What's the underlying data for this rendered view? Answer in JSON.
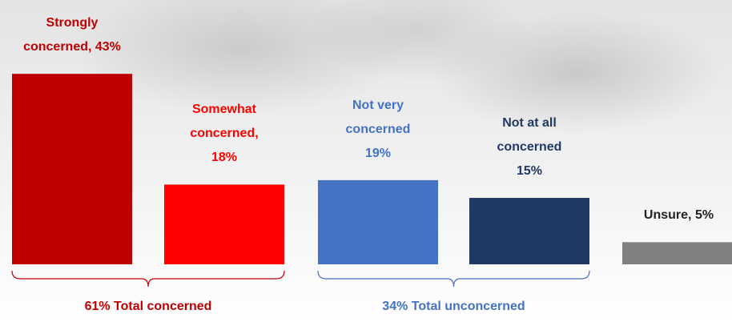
{
  "chart_data": {
    "type": "bar",
    "values": [
      43,
      18,
      19,
      15,
      5
    ],
    "value_labels": [
      "Strongly\nconcerned, 43%",
      "Somewhat\nconcerned,\n18%",
      "Not very\nconcerned\n19%",
      "Not at all\nconcerned\n15%",
      "Unsure, 5%"
    ],
    "colors": [
      "#c00000",
      "#ff0000",
      "#4472c4",
      "#203864",
      "#808080"
    ],
    "label_colors": [
      "#c00000",
      "#ff0000",
      "#4472c4",
      "#203864",
      "#222222"
    ],
    "groups": [
      {
        "label": "61% Total concerned",
        "span": [
          0,
          1
        ],
        "color": "#c00000"
      },
      {
        "label": "34% Total unconcerned",
        "span": [
          2,
          3
        ],
        "color": "#4472c4"
      }
    ]
  }
}
